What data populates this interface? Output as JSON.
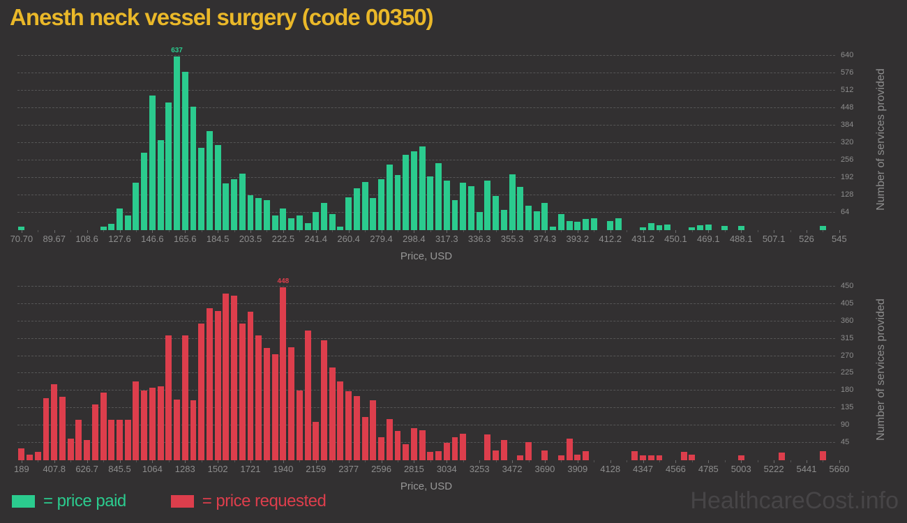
{
  "header": {
    "title": "Anesth neck vessel surgery (code 00350)"
  },
  "footer": {
    "legend": [
      {
        "label": "= price paid",
        "series": "paid"
      },
      {
        "label": "= price requested",
        "series": "requested"
      }
    ],
    "watermark": "HealthcareCost.info"
  },
  "colors": {
    "background": "#323031",
    "title": "#eab829",
    "paid": "#2bcb8e",
    "requested": "#dd3e4c",
    "tick_label": "#8d8d8d",
    "axis_title": "#979797",
    "grid": "#565656",
    "watermark": "#474547"
  },
  "chart_data": [
    {
      "type": "bar",
      "name": "price paid",
      "series_color_key": "paid",
      "xlabel": "Price, USD",
      "ylabel": "Number of services provided",
      "grid": "dashed-horizontal",
      "legend_position": "bottom",
      "x_ticks": [
        "70.70",
        "89.67",
        "108.6",
        "127.6",
        "146.6",
        "165.6",
        "184.5",
        "203.5",
        "222.5",
        "241.4",
        "260.4",
        "279.4",
        "298.4",
        "317.3",
        "336.3",
        "355.3",
        "374.3",
        "393.2",
        "412.2",
        "431.2",
        "450.1",
        "469.1",
        "488.1",
        "507.1",
        "526",
        "545"
      ],
      "y_ticks": [
        64,
        128,
        192,
        256,
        320,
        384,
        448,
        512,
        576,
        640
      ],
      "ylim": [
        0,
        660
      ],
      "xlim": [
        70.7,
        545
      ],
      "peak_annotation": "637",
      "values": [
        13,
        0,
        0,
        0,
        0,
        0,
        0,
        0,
        0,
        0,
        13,
        23,
        79,
        55,
        175,
        283,
        493,
        331,
        468,
        637,
        582,
        454,
        303,
        363,
        312,
        171,
        186,
        207,
        128,
        118,
        111,
        53,
        79,
        44,
        55,
        26,
        67,
        101,
        58,
        13,
        121,
        154,
        177,
        118,
        186,
        241,
        203,
        276,
        290,
        307,
        196,
        246,
        182,
        111,
        173,
        162,
        67,
        182,
        126,
        75,
        205,
        158,
        90,
        68,
        101,
        13,
        60,
        33,
        30,
        41,
        43,
        0,
        34,
        44,
        0,
        0,
        11,
        26,
        17,
        21,
        0,
        0,
        10,
        17,
        21,
        0,
        15,
        0,
        15,
        0,
        0,
        0,
        0,
        0,
        0,
        0,
        0,
        0,
        15,
        0
      ]
    },
    {
      "type": "bar",
      "name": "price requested",
      "series_color_key": "requested",
      "xlabel": "Price, USD",
      "ylabel": "Number of services provided",
      "grid": "dashed-horizontal",
      "legend_position": "bottom",
      "x_ticks": [
        "189",
        "407.8",
        "626.7",
        "845.5",
        "1064",
        "1283",
        "1502",
        "1721",
        "1940",
        "2159",
        "2377",
        "2596",
        "2815",
        "3034",
        "3253",
        "3472",
        "3690",
        "3909",
        "4128",
        "4347",
        "4566",
        "4785",
        "5003",
        "5222",
        "5441",
        "5660"
      ],
      "y_ticks": [
        45,
        90,
        135,
        180,
        225,
        270,
        315,
        360,
        405,
        450
      ],
      "ylim": [
        0,
        466
      ],
      "xlim": [
        189,
        5660
      ],
      "peak_annotation": "448",
      "values": [
        30,
        14,
        21,
        161,
        197,
        164,
        56,
        104,
        52,
        145,
        175,
        104,
        104,
        104,
        205,
        181,
        187,
        192,
        324,
        158,
        324,
        155,
        354,
        393,
        387,
        431,
        426,
        354,
        385,
        324,
        291,
        275,
        448,
        293,
        181,
        336,
        99,
        311,
        241,
        205,
        179,
        166,
        112,
        155,
        60,
        107,
        76,
        42,
        83,
        78,
        21,
        24,
        46,
        59,
        68,
        0,
        0,
        66,
        25,
        53,
        0,
        12,
        47,
        0,
        25,
        0,
        12,
        56,
        15,
        24,
        0,
        0,
        0,
        0,
        0,
        24,
        12,
        12,
        12,
        0,
        0,
        21,
        15,
        0,
        0,
        0,
        0,
        0,
        12,
        0,
        0,
        0,
        0,
        19,
        0,
        0,
        0,
        0,
        23,
        0
      ]
    }
  ]
}
